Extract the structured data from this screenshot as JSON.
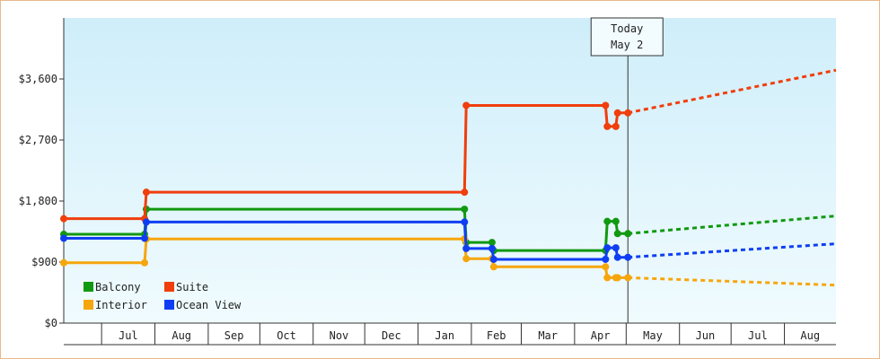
{
  "chart_data": {
    "type": "line",
    "title": "",
    "xlabel": "",
    "ylabel": "",
    "ylim": [
      0,
      4500
    ],
    "yticks": [
      0,
      900,
      1800,
      2700,
      3600
    ],
    "ytick_labels": [
      "$0",
      "$900",
      "$1,800",
      "$2,700",
      "$3,600"
    ],
    "x_domain": [
      "2023-06-09",
      "2024-08-31"
    ],
    "month_boundaries": [
      "2023-06-09",
      "2023-07-01",
      "2023-08-01",
      "2023-09-01",
      "2023-10-01",
      "2023-11-01",
      "2023-12-01",
      "2024-01-01",
      "2024-02-01",
      "2024-03-01",
      "2024-04-01",
      "2024-05-01",
      "2024-06-01",
      "2024-07-01",
      "2024-08-01",
      "2024-08-31"
    ],
    "month_labels": [
      "Jul",
      "Aug",
      "Sep",
      "Oct",
      "Nov",
      "Dec",
      "Jan",
      "Feb",
      "Mar",
      "Apr",
      "May",
      "Jun",
      "Jul",
      "Aug"
    ],
    "step": true,
    "today": {
      "date": "2024-05-02",
      "line1": "Today",
      "line2": "May 2"
    },
    "grid": false,
    "legend_position": "bottom-left",
    "series": [
      {
        "name": "Balcony",
        "color": "#119911",
        "points": [
          [
            "2023-06-09",
            1310
          ],
          [
            "2023-07-26",
            1310
          ],
          [
            "2023-07-27",
            1680
          ],
          [
            "2024-01-28",
            1680
          ],
          [
            "2024-01-29",
            1190
          ],
          [
            "2024-02-13",
            1190
          ],
          [
            "2024-02-14",
            1070
          ],
          [
            "2024-04-19",
            1070
          ],
          [
            "2024-04-20",
            1500
          ],
          [
            "2024-04-25",
            1500
          ],
          [
            "2024-04-26",
            1320
          ],
          [
            "2024-05-02",
            1320
          ]
        ],
        "forecast": [
          [
            "2024-05-02",
            1320
          ],
          [
            "2024-08-31",
            1580
          ]
        ]
      },
      {
        "name": "Suite",
        "color": "#f03e0c",
        "points": [
          [
            "2023-06-09",
            1540
          ],
          [
            "2023-07-26",
            1540
          ],
          [
            "2023-07-27",
            1930
          ],
          [
            "2024-01-28",
            1930
          ],
          [
            "2024-01-29",
            3210
          ],
          [
            "2024-04-19",
            3210
          ],
          [
            "2024-04-20",
            2900
          ],
          [
            "2024-04-25",
            2900
          ],
          [
            "2024-04-26",
            3100
          ],
          [
            "2024-05-02",
            3100
          ]
        ],
        "forecast": [
          [
            "2024-05-02",
            3100
          ],
          [
            "2024-08-31",
            3730
          ]
        ]
      },
      {
        "name": "Interior",
        "color": "#f6a60d",
        "points": [
          [
            "2023-06-09",
            890
          ],
          [
            "2023-07-26",
            890
          ],
          [
            "2023-07-27",
            1240
          ],
          [
            "2024-01-28",
            1240
          ],
          [
            "2024-01-29",
            950
          ],
          [
            "2024-02-13",
            950
          ],
          [
            "2024-02-14",
            830
          ],
          [
            "2024-04-19",
            830
          ],
          [
            "2024-04-20",
            670
          ],
          [
            "2024-04-25",
            670
          ],
          [
            "2024-04-26",
            670
          ],
          [
            "2024-05-02",
            670
          ]
        ],
        "forecast": [
          [
            "2024-05-02",
            670
          ],
          [
            "2024-08-31",
            560
          ]
        ]
      },
      {
        "name": "Ocean View",
        "color": "#0f3ef2",
        "points": [
          [
            "2023-06-09",
            1250
          ],
          [
            "2023-07-26",
            1250
          ],
          [
            "2023-07-27",
            1490
          ],
          [
            "2024-01-28",
            1490
          ],
          [
            "2024-01-29",
            1100
          ],
          [
            "2024-02-13",
            1100
          ],
          [
            "2024-02-14",
            940
          ],
          [
            "2024-04-19",
            940
          ],
          [
            "2024-04-20",
            1110
          ],
          [
            "2024-04-25",
            1110
          ],
          [
            "2024-04-26",
            970
          ],
          [
            "2024-05-02",
            970
          ]
        ],
        "forecast": [
          [
            "2024-05-02",
            970
          ],
          [
            "2024-08-31",
            1170
          ]
        ]
      }
    ]
  }
}
